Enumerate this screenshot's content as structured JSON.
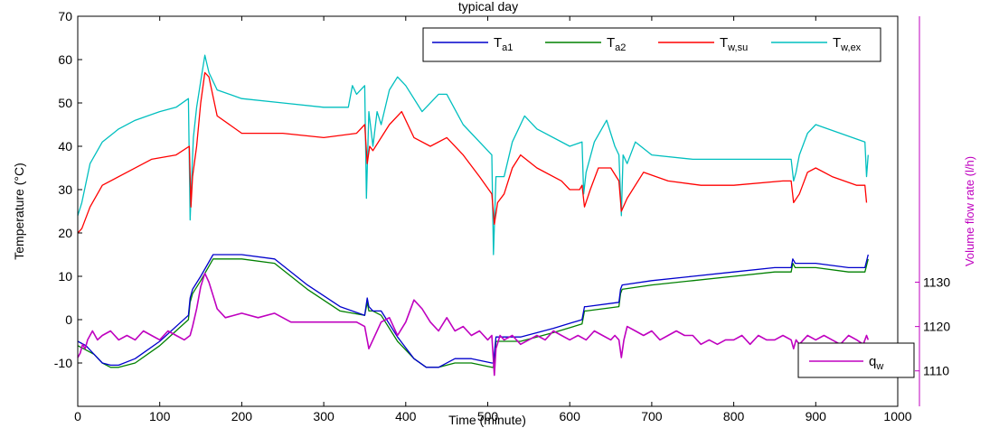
{
  "chart_data": {
    "type": "line",
    "title": "typical day",
    "xlabel": "Time (minute)",
    "ylabel_left": "Temperature (°C)",
    "ylabel_right": "Volume flow rate (l/h)",
    "xlim": [
      0,
      1000
    ],
    "ylim_left": [
      -20,
      70
    ],
    "ylim_right": [
      1102,
      1190
    ],
    "x_ticks": [
      "0",
      "100",
      "200",
      "300",
      "400",
      "500",
      "600",
      "700",
      "800",
      "900",
      "1000"
    ],
    "y_left_ticks": [
      "-10",
      "0",
      "10",
      "20",
      "30",
      "40",
      "50",
      "60",
      "70"
    ],
    "y_right_ticks": [
      "1110",
      "1120",
      "1130"
    ],
    "grid": false,
    "legend_top": {
      "placement": "top-right",
      "entries": [
        {
          "base": "T",
          "sub": "a1",
          "color": "#0000cc"
        },
        {
          "base": "T",
          "sub": "a2",
          "color": "#008000"
        },
        {
          "base": "T",
          "sub": "w,su",
          "color": "#ff0000"
        },
        {
          "base": "T",
          "sub": "w,ex",
          "color": "#00bfbf"
        }
      ]
    },
    "legend_bottom": {
      "placement": "bottom-right",
      "entries": [
        {
          "base": "q",
          "sub": "w",
          "color": "#bf00bf"
        }
      ]
    },
    "series": [
      {
        "axis": "left",
        "color": "#00bfbf",
        "x": [
          0,
          5,
          15,
          30,
          50,
          70,
          100,
          120,
          135,
          137,
          139,
          141,
          145,
          150,
          155,
          160,
          170,
          200,
          250,
          300,
          330,
          335,
          340,
          345,
          350,
          352,
          355,
          360,
          365,
          370,
          380,
          390,
          400,
          420,
          440,
          450,
          470,
          500,
          505,
          507,
          510,
          520,
          530,
          545,
          560,
          600,
          615,
          617,
          620,
          630,
          645,
          655,
          660,
          663,
          665,
          670,
          680,
          700,
          750,
          800,
          850,
          870,
          873,
          876,
          880,
          890,
          900,
          930,
          960,
          962,
          964
        ],
        "y": [
          24,
          27,
          36,
          41,
          44,
          46,
          48,
          49,
          51,
          23,
          33,
          42,
          49,
          55,
          61,
          57,
          53,
          51,
          50,
          49,
          49,
          54,
          52,
          53,
          54,
          28,
          48,
          40,
          48,
          45,
          53,
          56,
          54,
          48,
          52,
          52,
          45,
          39,
          38,
          15,
          33,
          33,
          41,
          47,
          44,
          40,
          41,
          29,
          34,
          41,
          46,
          40,
          38,
          24,
          38,
          36,
          41,
          38,
          37,
          37,
          37,
          37,
          32,
          34,
          38,
          43,
          45,
          43,
          41,
          33,
          38
        ]
      },
      {
        "axis": "left",
        "color": "#ff0000",
        "x": [
          0,
          5,
          15,
          30,
          60,
          90,
          120,
          136,
          138,
          140,
          145,
          150,
          155,
          160,
          170,
          200,
          250,
          300,
          340,
          350,
          353,
          356,
          360,
          370,
          380,
          395,
          410,
          430,
          450,
          470,
          490,
          505,
          508,
          512,
          520,
          530,
          540,
          560,
          590,
          600,
          612,
          615,
          618,
          625,
          635,
          650,
          660,
          663,
          670,
          690,
          720,
          760,
          800,
          860,
          870,
          873,
          880,
          890,
          900,
          920,
          950,
          960,
          962
        ],
        "y": [
          20,
          21,
          26,
          31,
          34,
          37,
          38,
          40,
          26,
          33,
          40,
          50,
          57,
          56,
          47,
          43,
          43,
          42,
          43,
          45,
          36,
          40,
          39,
          42,
          45,
          48,
          42,
          40,
          42,
          38,
          33,
          29,
          22,
          27,
          29,
          35,
          38,
          35,
          32,
          30,
          30,
          31,
          26,
          30,
          35,
          35,
          32,
          25,
          28,
          34,
          32,
          31,
          31,
          32,
          32,
          27,
          29,
          34,
          35,
          33,
          31,
          31,
          27
        ]
      },
      {
        "axis": "left",
        "color": "#008000",
        "x": [
          0,
          10,
          20,
          30,
          40,
          50,
          70,
          100,
          135,
          137,
          140,
          150,
          165,
          180,
          200,
          240,
          280,
          320,
          350,
          353,
          355,
          360,
          370,
          390,
          410,
          425,
          440,
          460,
          480,
          505,
          507,
          510,
          540,
          580,
          615,
          618,
          620,
          660,
          662,
          664,
          700,
          750,
          800,
          850,
          870,
          872,
          875,
          900,
          940,
          960,
          964
        ],
        "y": [
          -6,
          -7,
          -8,
          -10,
          -11,
          -11,
          -10,
          -6,
          0,
          4,
          6,
          9,
          14,
          14,
          14,
          13,
          7,
          2,
          1,
          4,
          2,
          2,
          1,
          -5,
          -9,
          -11,
          -11,
          -10,
          -10,
          -11,
          -11,
          -5,
          -5,
          -3,
          -1,
          2,
          2,
          3,
          6,
          7,
          8,
          9,
          10,
          11,
          11,
          13,
          12,
          12,
          11,
          11,
          14
        ]
      },
      {
        "axis": "left",
        "color": "#0000cc",
        "x": [
          0,
          10,
          20,
          30,
          40,
          50,
          70,
          100,
          135,
          137,
          140,
          150,
          165,
          180,
          200,
          240,
          280,
          320,
          350,
          353,
          355,
          360,
          370,
          390,
          410,
          425,
          440,
          460,
          480,
          505,
          507,
          510,
          540,
          580,
          615,
          618,
          620,
          660,
          662,
          664,
          700,
          750,
          800,
          850,
          870,
          872,
          875,
          900,
          940,
          960,
          964
        ],
        "y": [
          -5,
          -6,
          -8,
          -10,
          -10.5,
          -10.5,
          -9,
          -5,
          1,
          5,
          7,
          10,
          15,
          15,
          15,
          14,
          8,
          3,
          1,
          5,
          3,
          2,
          2,
          -4,
          -9,
          -11,
          -11,
          -9,
          -9,
          -10,
          -10,
          -4,
          -4,
          -2,
          0,
          3,
          3,
          4,
          7,
          8,
          9,
          10,
          11,
          12,
          12,
          14,
          13,
          13,
          12,
          12,
          15
        ]
      },
      {
        "axis": "right",
        "color": "#bf00bf",
        "x": [
          0,
          3,
          6,
          9,
          12,
          18,
          24,
          30,
          40,
          50,
          60,
          70,
          80,
          90,
          100,
          110,
          120,
          130,
          137,
          140,
          145,
          150,
          155,
          160,
          165,
          170,
          180,
          200,
          220,
          240,
          260,
          280,
          300,
          320,
          340,
          350,
          355,
          360,
          370,
          380,
          390,
          400,
          410,
          420,
          430,
          440,
          450,
          460,
          470,
          480,
          490,
          500,
          505,
          508,
          510,
          515,
          520,
          530,
          540,
          550,
          560,
          570,
          580,
          590,
          600,
          610,
          620,
          630,
          640,
          650,
          655,
          660,
          663,
          666,
          670,
          680,
          690,
          700,
          710,
          720,
          730,
          740,
          750,
          760,
          770,
          780,
          790,
          800,
          810,
          820,
          830,
          840,
          850,
          860,
          870,
          873,
          876,
          880,
          890,
          900,
          910,
          920,
          930,
          940,
          950,
          958,
          962,
          964
        ],
        "y": [
          1113,
          1114,
          1116,
          1115,
          1117,
          1119,
          1117,
          1118,
          1119,
          1117,
          1118,
          1117,
          1119,
          1118,
          1117,
          1119,
          1118,
          1117,
          1118,
          1120,
          1124,
          1129,
          1132,
          1130,
          1127,
          1124,
          1122,
          1123,
          1122,
          1123,
          1121,
          1121,
          1121,
          1121,
          1121,
          1120,
          1115,
          1117,
          1121,
          1122,
          1118,
          1121,
          1126,
          1124,
          1121,
          1119,
          1122,
          1119,
          1120,
          1118,
          1119,
          1117,
          1118,
          1109,
          1115,
          1118,
          1117,
          1118,
          1116,
          1117,
          1118,
          1117,
          1119,
          1118,
          1117,
          1118,
          1117,
          1119,
          1118,
          1117,
          1118,
          1117,
          1113,
          1117,
          1120,
          1119,
          1118,
          1119,
          1117,
          1118,
          1119,
          1118,
          1118,
          1116,
          1117,
          1116,
          1117,
          1117,
          1118,
          1116,
          1118,
          1117,
          1117,
          1118,
          1117,
          1115,
          1117,
          1116,
          1118,
          1117,
          1118,
          1117,
          1116,
          1118,
          1117,
          1116,
          1118,
          1117
        ]
      }
    ]
  }
}
